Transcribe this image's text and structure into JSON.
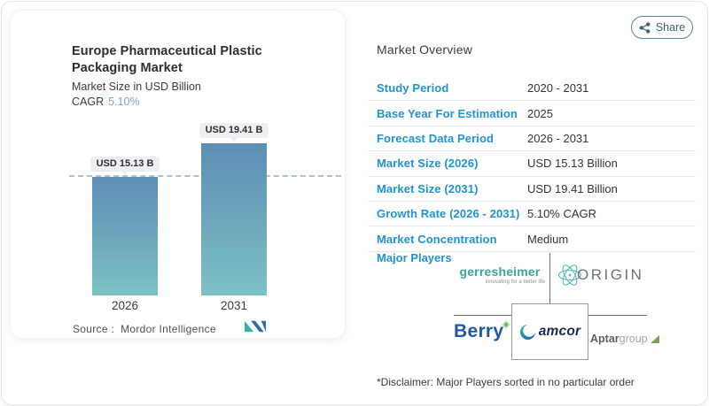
{
  "chart_card": {
    "title": "Europe Pharmaceutical Plastic Packaging Market",
    "subtitle": "Market Size in USD Billion",
    "cagr_label": "CAGR",
    "cagr_value": "5.10%",
    "source_label": "Source :",
    "source_name": "Mordor Intelligence"
  },
  "chart_data": {
    "type": "bar",
    "title": "Europe Pharmaceutical Plastic Packaging Market",
    "subtitle": "Market Size in USD Billion",
    "unit": "USD Billion",
    "cagr_pct": "5.10%",
    "categories": [
      "2026",
      "2031"
    ],
    "values": [
      15.13,
      19.41
    ],
    "value_labels": [
      "USD 15.13 B",
      "USD 19.41 B"
    ],
    "ylim": [
      0,
      22
    ],
    "grid": false,
    "legend": false,
    "reference_line": {
      "style": "dashed",
      "value": 15.13
    },
    "bar_gradient": [
      "#5d8eb4",
      "#7cc2c5"
    ]
  },
  "share_button": {
    "label": "Share"
  },
  "overview": {
    "heading": "Market Overview",
    "rows": [
      {
        "label": "Study Period",
        "value": "2020 - 2031"
      },
      {
        "label": "Base Year For Estimation",
        "value": "2025"
      },
      {
        "label": "Forecast Data Period",
        "value": "2026 - 2031"
      },
      {
        "label": "Market Size (2026)",
        "value": "USD 15.13 Billion"
      },
      {
        "label": "Market Size (2031)",
        "value": "USD 19.41 Billion"
      },
      {
        "label": "Growth Rate (2026 - 2031)",
        "value": "5.10% CAGR"
      },
      {
        "label": "Market Concentration",
        "value": "Medium"
      }
    ],
    "major_players_label": "Major Players",
    "players": {
      "gerresheimer": {
        "name": "gerresheimer",
        "tagline": "innovating for a better life"
      },
      "origin": {
        "name": "ORIGIN"
      },
      "berry": {
        "name": "Berry"
      },
      "amcor": {
        "name": "amcor"
      },
      "aptargroup": {
        "name_bold": "Aptar",
        "name_light": "group"
      }
    },
    "disclaimer": "*Disclaimer: Major Players sorted in no particular order"
  },
  "icons": {
    "share-icon": "three-node share glyph",
    "mordor-intelligence-logo": "teal and blue M mark",
    "atom-icon": "teal atom orbit mark (Origin)",
    "amcor-swoosh-icon": "teal-to-blue crescent swoosh",
    "berry-sparkle-icon": "teal and yellow four-point star",
    "aptar-leaf-icon": "green corner leaf mark"
  },
  "colors": {
    "label_blue": "#2094d3",
    "bar_top": "#5d8eb4",
    "bar_bottom": "#7cc2c5",
    "dashed_line": "#abc3d5",
    "cagr_value": "#7ba9cc",
    "share_border": "#5d839a",
    "gerresheimer_teal": "#3ba49f",
    "origin_gray": "#6f7274",
    "berry_blue": "#2257a7",
    "amcor_navy": "#1b2a4e",
    "aptar_gray": "#5b6066",
    "separator": "#e8eaec"
  }
}
